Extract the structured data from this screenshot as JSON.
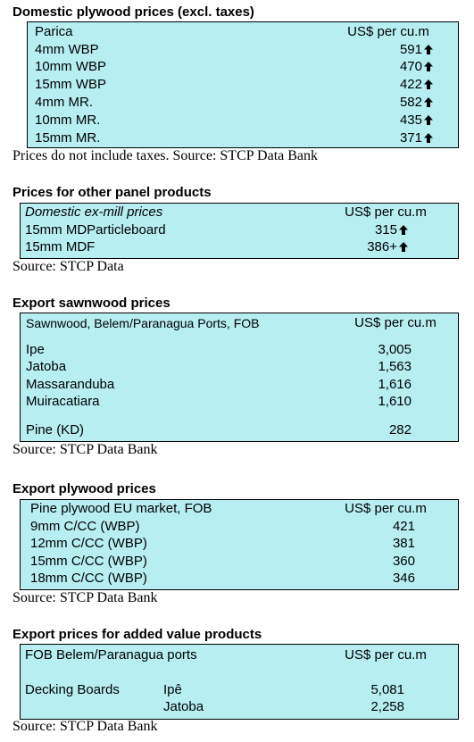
{
  "sections": {
    "domestic_plywood": {
      "title": "Domestic plywood prices (excl. taxes)",
      "header_label": "Parica",
      "header_unit": "US$ per cu.m",
      "rows": [
        {
          "label": "4mm WBP",
          "value": "591",
          "trend": "up-arrow-icon"
        },
        {
          "label": "10mm WBP",
          "value": "470",
          "trend": "up-arrow-icon"
        },
        {
          "label": "15mm WBP",
          "value": "422",
          "trend": "up-arrow-icon"
        },
        {
          "label": "4mm MR.",
          "value": "582",
          "trend": "up-arrow-icon"
        },
        {
          "label": "10mm MR.",
          "value": "435",
          "trend": "up-arrow-icon"
        },
        {
          "label": "15mm MR.",
          "value": "371",
          "trend": "up-arrow-icon"
        }
      ],
      "note": "Prices do not include taxes. Source: STCP Data Bank"
    },
    "other_panels": {
      "title": "Prices for other panel products",
      "header_label": "Domestic ex-mill prices",
      "header_unit": "US$ per cu.m",
      "rows": [
        {
          "label": "15mm MDParticleboard",
          "value": "315",
          "trend": "up-arrow-icon"
        },
        {
          "label": "15mm MDF",
          "value": "386+",
          "trend": "up-arrow-icon"
        }
      ],
      "note": "Source: STCP Data"
    },
    "export_sawnwood": {
      "title": "Export sawnwood prices",
      "header_label": "Sawnwood, Belem/Paranagua Ports, FOB",
      "header_unit": "US$ per cu.m",
      "rows": [
        {
          "label": "Ipe",
          "value": "3,005"
        },
        {
          "label": "Jatoba",
          "value": "1,563"
        },
        {
          "label": "Massaranduba",
          "value": "1,616"
        },
        {
          "label": "Muiracatiara",
          "value": "1,610"
        },
        {
          "label": "Pine (KD)",
          "value": "282"
        }
      ],
      "note": "Source: STCP Data Bank"
    },
    "export_plywood": {
      "title": "Export plywood prices",
      "header_label": "Pine plywood EU market, FOB",
      "header_unit": "US$ per cu.m",
      "rows": [
        {
          "label": "9mm C/CC (WBP)",
          "value": "421"
        },
        {
          "label": "12mm C/CC (WBP)",
          "value": "381"
        },
        {
          "label": "15mm C/CC (WBP)",
          "value": "360"
        },
        {
          "label": "18mm C/CC (WBP)",
          "value": "346"
        }
      ],
      "note": "Source: STCP Data Bank"
    },
    "added_value": {
      "title": "Export prices for added value products",
      "header_label": "FOB Belem/Paranagua ports",
      "header_unit": "US$ per cu.m",
      "product": "Decking Boards",
      "rows": [
        {
          "species": "Ipê",
          "value": "5,081"
        },
        {
          "species": "Jatoba",
          "value": "2,258"
        }
      ],
      "note": "Source: STCP Data Bank"
    }
  }
}
